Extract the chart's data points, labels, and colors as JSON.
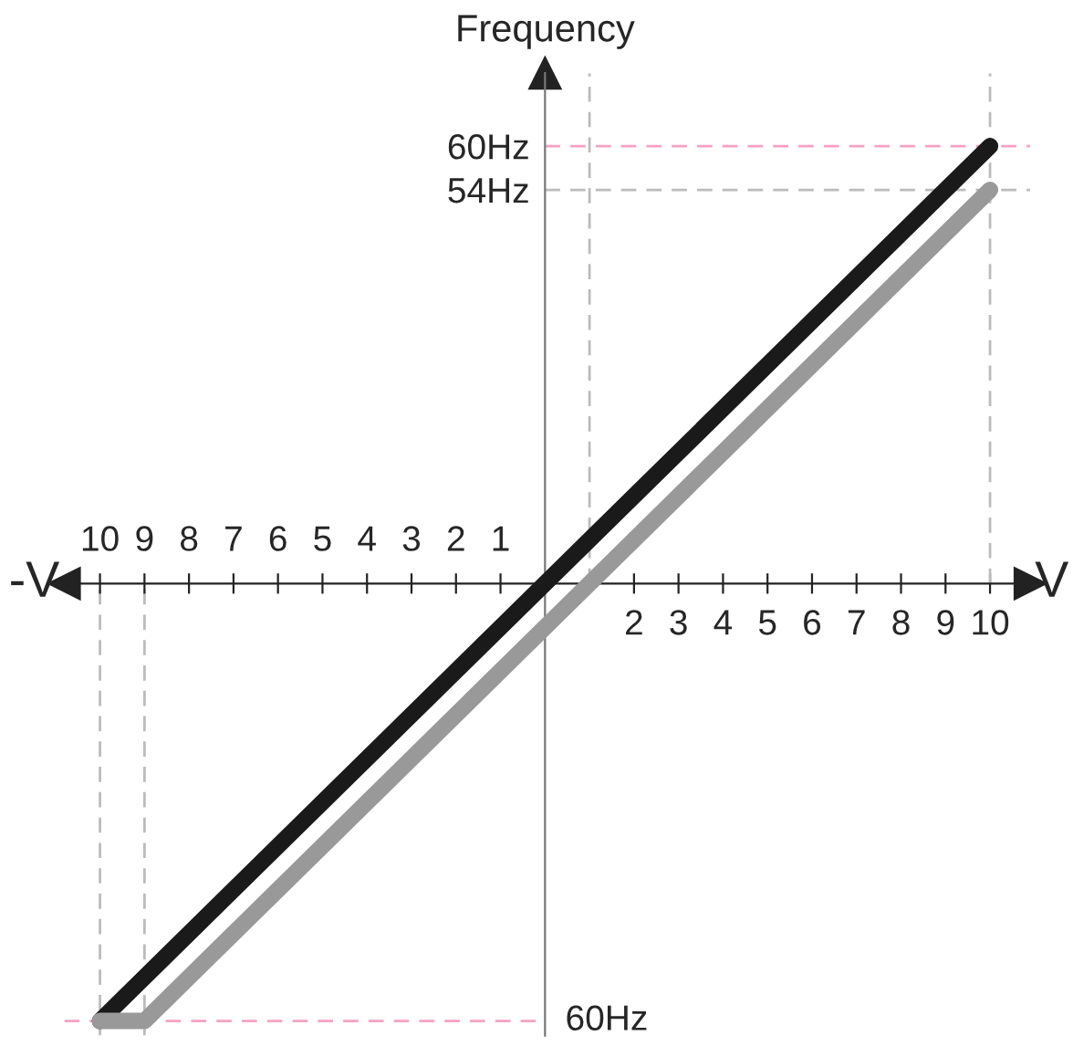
{
  "chart_data": {
    "type": "line",
    "ylabel": "Frequency",
    "xlabel": "V",
    "annotations": [
      "-V",
      {
        "text": "60Hz",
        "x": 0,
        "y": -60
      }
    ],
    "series": [
      {
        "color": "#1a1a1a",
        "x": [
          -10,
          10
        ],
        "values": [
          -60,
          60
        ]
      },
      {
        "color": "#999999",
        "x": [
          -10,
          -9,
          1,
          10
        ],
        "values": [
          -60,
          -60,
          0,
          54
        ]
      }
    ],
    "xlim": [
      -10.8,
      10.9
    ],
    "ylim": [
      -62,
      70
    ],
    "xticks": [
      {
        "value": 1,
        "label": null
      },
      2,
      3,
      4,
      5,
      6,
      7,
      8,
      9,
      10
    ],
    "x2lim": [
      10.8,
      -10.9
    ],
    "x2ticks": [
      10,
      9,
      8,
      7,
      6,
      5,
      4,
      3,
      2,
      1
    ],
    "yticks": [
      {
        "value": 60,
        "label": "60Hz"
      },
      {
        "value": 54,
        "label": "54Hz"
      }
    ],
    "ref_lines": [
      {
        "axis": "y",
        "value": 60,
        "color": "#f7a1c4",
        "line_style": "dashed"
      },
      {
        "axis": "y",
        "value": 54,
        "color": "#bbbbbb",
        "line_style": "dashed"
      },
      {
        "axis": "y",
        "value": -60,
        "color": "#f7a1c4",
        "line_style": "dashed"
      },
      {
        "axis": "x",
        "value": 10,
        "color": "#bbbbbb",
        "line_style": "dashed"
      },
      {
        "axis": "x",
        "value": 1,
        "color": "#bbbbbb",
        "line_style": "dashed"
      },
      {
        "axis": "x",
        "value": -10,
        "color": "#bbbbbb",
        "line_style": "dashed"
      },
      {
        "axis": "x",
        "value": -9,
        "color": "#bbbbbb",
        "line_style": "dashed"
      }
    ],
    "grid": false,
    "legend": false,
    "marker": "none",
    "line_style": "solid"
  }
}
